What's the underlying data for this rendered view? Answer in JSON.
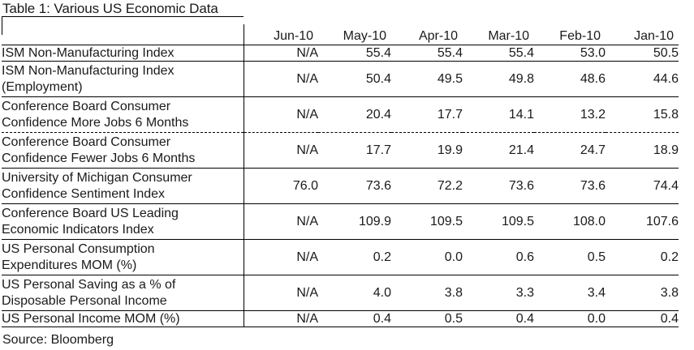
{
  "table": {
    "title": "Table 1: Various US Economic Data",
    "columns": [
      "Jun-10",
      "May-10",
      "Apr-10",
      "Mar-10",
      "Feb-10",
      "Jan-10"
    ],
    "rows": [
      {
        "label": [
          "ISM Non-Manufacturing Index"
        ],
        "values": [
          "N/A",
          "55.4",
          "55.4",
          "55.4",
          "53.0",
          "50.5"
        ]
      },
      {
        "label": [
          "ISM Non-Manufacturing Index",
          "(Employment)"
        ],
        "values": [
          "N/A",
          "50.4",
          "49.5",
          "49.8",
          "48.6",
          "44.6"
        ]
      },
      {
        "label": [
          "Conference Board Consumer",
          "Confidence More Jobs 6 Months"
        ],
        "values": [
          "N/A",
          "20.4",
          "17.7",
          "14.1",
          "13.2",
          "15.8"
        ]
      },
      {
        "label": [
          "Conference Board Consumer",
          "Confidence Fewer Jobs 6 Months"
        ],
        "values": [
          "N/A",
          "17.7",
          "19.9",
          "21.4",
          "24.7",
          "18.9"
        ]
      },
      {
        "label": [
          "University of Michigan Consumer",
          "Confidence Sentiment Index"
        ],
        "values": [
          "76.0",
          "73.6",
          "72.2",
          "73.6",
          "73.6",
          "74.4"
        ]
      },
      {
        "label": [
          "Conference Board US Leading",
          "Economic Indicators Index"
        ],
        "values": [
          "N/A",
          "109.9",
          "109.5",
          "109.5",
          "108.0",
          "107.6"
        ]
      },
      {
        "label": [
          "US Personal Consumption",
          "Expenditures MOM (%)"
        ],
        "values": [
          "N/A",
          "0.2",
          "0.0",
          "0.6",
          "0.5",
          "0.2"
        ]
      },
      {
        "label": [
          "US Personal Saving as a % of",
          "Disposable Personal Income"
        ],
        "values": [
          "N/A",
          "4.0",
          "3.8",
          "3.3",
          "3.4",
          "3.8"
        ]
      },
      {
        "label": [
          "US Personal Income MOM (%)"
        ],
        "values": [
          "N/A",
          "0.4",
          "0.5",
          "0.4",
          "0.0",
          "0.4"
        ]
      }
    ],
    "source": "Source: Bloomberg"
  }
}
